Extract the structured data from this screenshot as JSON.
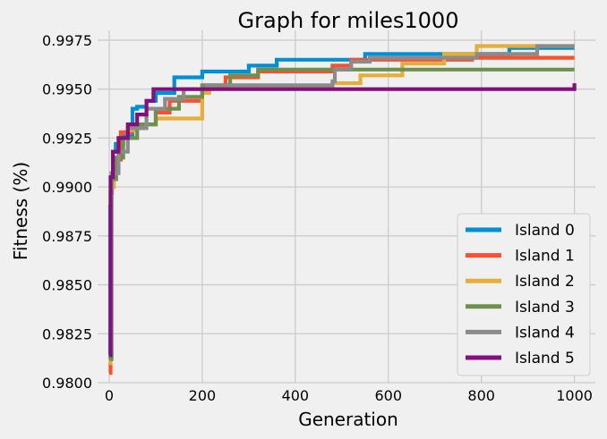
{
  "chart_data": {
    "type": "line",
    "title": "Graph for miles1000",
    "xlabel": "Generation",
    "ylabel": "Fitness (%)",
    "xlim": [
      -25,
      1045
    ],
    "ylim": [
      0.98,
      0.998
    ],
    "xticks": [
      0,
      200,
      400,
      600,
      800,
      1000
    ],
    "yticks": [
      0.98,
      0.9825,
      0.985,
      0.9875,
      0.99,
      0.9925,
      0.995,
      0.9975
    ],
    "xtick_labels": [
      "0",
      "200",
      "400",
      "600",
      "800",
      "1000"
    ],
    "ytick_labels": [
      "0.9800",
      "0.9825",
      "0.9850",
      "0.9875",
      "0.9900",
      "0.9925",
      "0.9950",
      "0.9975"
    ],
    "grid": true,
    "legend_position": "lower-right",
    "step": true,
    "series": [
      {
        "name": "Island 0",
        "color": "#008fd5",
        "points": [
          [
            0,
            0.9812
          ],
          [
            2,
            0.989
          ],
          [
            4,
            0.9905
          ],
          [
            8,
            0.9918
          ],
          [
            14,
            0.9922
          ],
          [
            30,
            0.9926
          ],
          [
            50,
            0.994
          ],
          [
            60,
            0.9941
          ],
          [
            80,
            0.9944
          ],
          [
            100,
            0.9948
          ],
          [
            140,
            0.9956
          ],
          [
            200,
            0.9959
          ],
          [
            300,
            0.9962
          ],
          [
            360,
            0.9965
          ],
          [
            550,
            0.9968
          ],
          [
            860,
            0.9971
          ],
          [
            1000,
            0.9971
          ]
        ]
      },
      {
        "name": "Island 1",
        "color": "#fc4f30",
        "points": [
          [
            0,
            0.9805
          ],
          [
            3,
            0.9897
          ],
          [
            6,
            0.9907
          ],
          [
            10,
            0.9914
          ],
          [
            25,
            0.9928
          ],
          [
            50,
            0.9932
          ],
          [
            100,
            0.9938
          ],
          [
            130,
            0.9944
          ],
          [
            200,
            0.9951
          ],
          [
            250,
            0.9956
          ],
          [
            320,
            0.9959
          ],
          [
            480,
            0.9962
          ],
          [
            520,
            0.9965
          ],
          [
            780,
            0.9966
          ],
          [
            1000,
            0.9966
          ]
        ]
      },
      {
        "name": "Island 2",
        "color": "#e5ae38",
        "points": [
          [
            0,
            0.981
          ],
          [
            3,
            0.99
          ],
          [
            10,
            0.9915
          ],
          [
            20,
            0.9925
          ],
          [
            40,
            0.9929
          ],
          [
            60,
            0.9932
          ],
          [
            100,
            0.9935
          ],
          [
            200,
            0.9948
          ],
          [
            215,
            0.9951
          ],
          [
            430,
            0.9951
          ],
          [
            480,
            0.9953
          ],
          [
            540,
            0.9957
          ],
          [
            630,
            0.9963
          ],
          [
            720,
            0.9968
          ],
          [
            790,
            0.9972
          ],
          [
            1000,
            0.9972
          ]
        ]
      },
      {
        "name": "Island 3",
        "color": "#6d904f",
        "points": [
          [
            0,
            0.9812
          ],
          [
            5,
            0.9904
          ],
          [
            15,
            0.9915
          ],
          [
            30,
            0.9925
          ],
          [
            60,
            0.9932
          ],
          [
            100,
            0.994
          ],
          [
            150,
            0.9946
          ],
          [
            200,
            0.9952
          ],
          [
            260,
            0.9957
          ],
          [
            320,
            0.996
          ],
          [
            1000,
            0.996
          ]
        ]
      },
      {
        "name": "Island 4",
        "color": "#8b8b8b",
        "points": [
          [
            0,
            0.9815
          ],
          [
            5,
            0.9907
          ],
          [
            20,
            0.9918
          ],
          [
            40,
            0.993
          ],
          [
            80,
            0.994
          ],
          [
            120,
            0.9945
          ],
          [
            160,
            0.995
          ],
          [
            210,
            0.9952
          ],
          [
            480,
            0.9954
          ],
          [
            485,
            0.996
          ],
          [
            520,
            0.9964
          ],
          [
            560,
            0.9966
          ],
          [
            790,
            0.9968
          ],
          [
            920,
            0.9972
          ],
          [
            1000,
            0.9972
          ]
        ]
      },
      {
        "name": "Island 5",
        "color": "#810f7c",
        "points": [
          [
            0,
            0.9814
          ],
          [
            3,
            0.9905
          ],
          [
            8,
            0.9918
          ],
          [
            20,
            0.9925
          ],
          [
            40,
            0.9932
          ],
          [
            60,
            0.9937
          ],
          [
            80,
            0.9944
          ],
          [
            95,
            0.995
          ],
          [
            1000,
            0.9953
          ]
        ]
      }
    ]
  }
}
